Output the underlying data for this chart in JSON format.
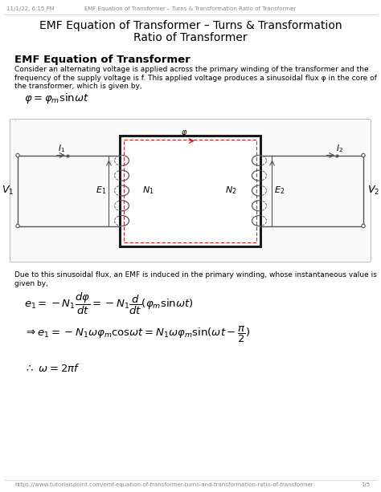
{
  "title_line1": "EMF Equation of Transformer – Turns & Transformation",
  "title_line2": "Ratio of Transformer",
  "header_date": "11/1/22, 6:15 PM",
  "header_center": "EMF Equation of Transformer – Turns & Transformation Ratio of Transformer",
  "footer_url": "https://www.tutorialspoint.com/emf-equation-of-transformer-turns-and-transformation-ratio-of-transformer",
  "footer_page": "1/5",
  "section_title": "EMF Equation of Transformer",
  "bg_color": "#ffffff",
  "text_color": "#000000",
  "header_color": "#888888",
  "gray_text": "#444444",
  "diagram_border": "#bbbbbb",
  "core_color": "#1a1a1a",
  "dashed_color": "#cc2222",
  "wire_color": "#555555"
}
